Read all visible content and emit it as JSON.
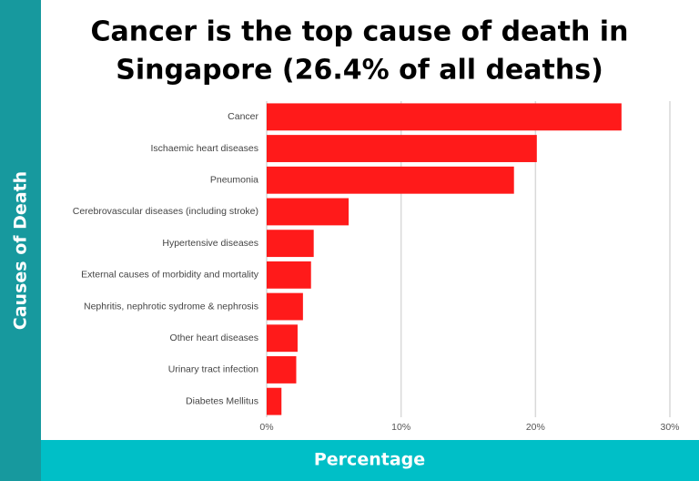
{
  "chart_data": {
    "type": "bar",
    "orientation": "horizontal",
    "title": [
      "Cancer is the top cause of death in",
      "Singapore (26.4% of all deaths)"
    ],
    "x_label": "Percentage",
    "y_label": "Causes of Death",
    "categories": [
      "Cancer",
      "Ischaemic heart diseases",
      "Pneumonia",
      "Cerebrovascular diseases (including stroke)",
      "Hypertensive diseases",
      "External causes of morbidity and mortality",
      "Nephritis, nephrotic sydrome & nephrosis",
      "Other heart diseases",
      "Urinary tract infection",
      "Diabetes Mellitus"
    ],
    "values": [
      26.4,
      20.1,
      18.4,
      6.1,
      3.5,
      3.3,
      2.7,
      2.3,
      2.2,
      1.1
    ],
    "color": "#ff1a1a",
    "xlim": [
      0,
      30
    ],
    "xticks": [
      {
        "value": 0,
        "label": "0%"
      },
      {
        "value": 10,
        "label": "10%"
      },
      {
        "value": 20,
        "label": "20%"
      },
      {
        "value": 30,
        "label": "30%"
      }
    ],
    "grid": true
  }
}
